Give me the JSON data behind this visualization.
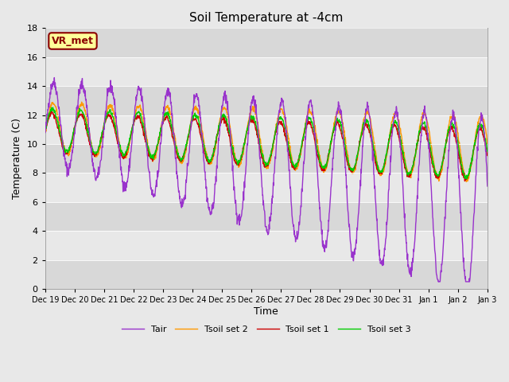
{
  "title": "Soil Temperature at -4cm",
  "xlabel": "Time",
  "ylabel": "Temperature (C)",
  "ylim": [
    0,
    18
  ],
  "yticks": [
    0,
    2,
    4,
    6,
    8,
    10,
    12,
    14,
    16,
    18
  ],
  "annotation_text": "VR_met",
  "annotation_box_color": "#FFFF99",
  "annotation_border_color": "#8B0000",
  "legend_labels": [
    "Tair",
    "Tsoil set 1",
    "Tsoil set 2",
    "Tsoil set 3"
  ],
  "line_colors": [
    "#9933CC",
    "#CC0000",
    "#FF9900",
    "#00CC00"
  ],
  "bg_bands": [
    [
      0,
      2,
      "#D8D8D8"
    ],
    [
      2,
      4,
      "#E8E8E8"
    ],
    [
      4,
      6,
      "#D8D8D8"
    ],
    [
      6,
      8,
      "#E8E8E8"
    ],
    [
      8,
      10,
      "#D8D8D8"
    ],
    [
      10,
      12,
      "#E8E8E8"
    ],
    [
      12,
      14,
      "#D8D8D8"
    ],
    [
      14,
      16,
      "#E8E8E8"
    ],
    [
      16,
      18,
      "#D8D8D8"
    ]
  ],
  "xtick_labels": [
    "Dec 19",
    "Dec 20",
    "Dec 21",
    "Dec 22",
    "Dec 23",
    "Dec 24",
    "Dec 25",
    "Dec 26",
    "Dec 27",
    "Dec 28",
    "Dec 29",
    "Dec 30",
    "Dec 31",
    "Jan 1",
    "Jan 2",
    "Jan 3"
  ],
  "n_days": 15.5,
  "figsize": [
    6.4,
    4.8
  ],
  "dpi": 100
}
